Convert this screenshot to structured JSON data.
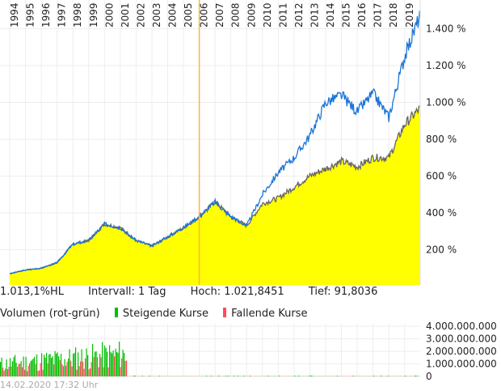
{
  "chart_data": [
    {
      "type": "line",
      "years": [
        "1994",
        "1995",
        "1996",
        "1997",
        "1998",
        "1999",
        "2000",
        "2001",
        "2002",
        "2003",
        "2004",
        "2005",
        "2006",
        "2007",
        "2008",
        "2009",
        "2010",
        "2011",
        "2012",
        "2013",
        "2014",
        "2015",
        "2016",
        "2017",
        "2018",
        "2019"
      ],
      "y_ticks": [
        "200 %",
        "400 %",
        "600 %",
        "800 %",
        "1.000 %",
        "1.200 %",
        "1.400 %"
      ],
      "ylim": [
        0,
        1400
      ],
      "y_unit": "%",
      "marker_year": "2006",
      "grid": true,
      "series": [
        {
          "color": "#1a75d9",
          "x": [
            1994,
            1995,
            1996,
            1997,
            1998,
            1999,
            2000,
            2001,
            2002,
            2003,
            2004,
            2005,
            2006,
            2007,
            2008,
            2009,
            2010,
            2011,
            2012,
            2013,
            2014,
            2015,
            2016,
            2017,
            2018,
            2019,
            2020
          ],
          "y": [
            70,
            90,
            100,
            130,
            230,
            250,
            340,
            320,
            250,
            220,
            270,
            320,
            380,
            460,
            380,
            330,
            500,
            620,
            700,
            820,
            1000,
            1040,
            950,
            1050,
            920,
            1250,
            1480
          ]
        },
        {
          "color": "#666666",
          "fill": "#ffff00",
          "x": [
            1994,
            1995,
            1996,
            1997,
            1998,
            1999,
            2000,
            2001,
            2002,
            2003,
            2004,
            2005,
            2006,
            2007,
            2008,
            2009,
            2010,
            2011,
            2012,
            2013,
            2014,
            2015,
            2016,
            2017,
            2018,
            2019,
            2020
          ],
          "y": [
            70,
            90,
            100,
            130,
            230,
            250,
            340,
            320,
            250,
            220,
            270,
            320,
            380,
            460,
            380,
            330,
            450,
            480,
            540,
            600,
            640,
            680,
            650,
            700,
            700,
            880,
            970
          ]
        }
      ]
    },
    {
      "type": "bar",
      "title": "Volumen (rot-grün)",
      "legend": [
        {
          "label": "Steigende Kurse",
          "color": "#00c000"
        },
        {
          "label": "Fallende Kurse",
          "color": "#ff4b5a"
        }
      ],
      "y_ticks": [
        "0",
        "1.000.000.000",
        "2.000.000.000",
        "3.000.000.000",
        "4.000.000.000"
      ],
      "ylim": [
        0,
        4000000000
      ]
    }
  ],
  "info": {
    "hl": "1.013,1%HL",
    "interval": "Intervall: 1 Tag",
    "high": "Hoch: 1.021,8451",
    "low": "Tief: 91,8036"
  },
  "timestamp": "14.02.2020 17:32 Uhr"
}
